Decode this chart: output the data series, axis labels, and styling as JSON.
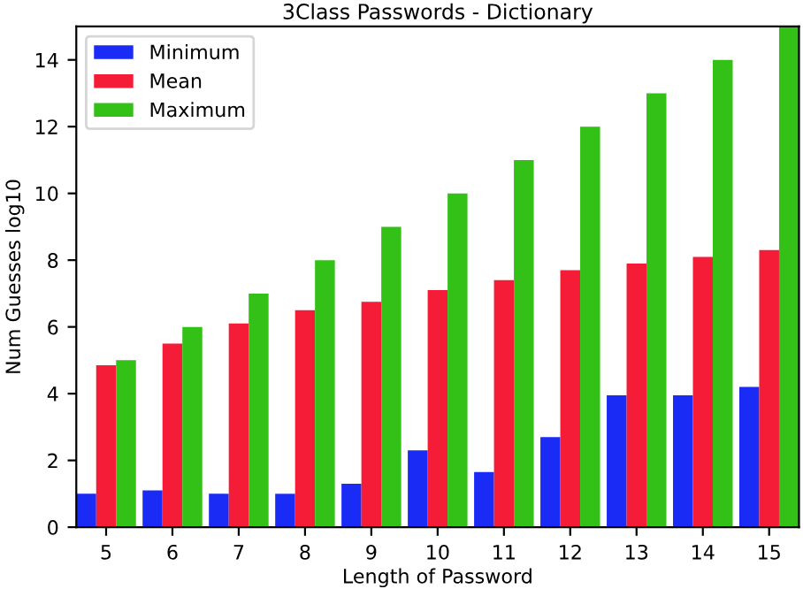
{
  "chart_data": {
    "type": "bar",
    "title": "3Class Passwords - Dictionary",
    "xlabel": "Length of Password",
    "ylabel": "Num Guesses log10",
    "categories": [
      "5",
      "6",
      "7",
      "8",
      "9",
      "10",
      "11",
      "12",
      "13",
      "14",
      "15"
    ],
    "series": [
      {
        "name": "Minimum",
        "color": "#1a2bf5",
        "values": [
          1.0,
          1.1,
          1.0,
          1.0,
          1.3,
          2.3,
          1.65,
          2.7,
          3.95,
          3.95,
          4.2
        ]
      },
      {
        "name": "Mean",
        "color": "#f51c38",
        "values": [
          4.85,
          5.5,
          6.1,
          6.5,
          6.75,
          7.1,
          7.4,
          7.7,
          7.9,
          8.1,
          8.3
        ]
      },
      {
        "name": "Maximum",
        "color": "#33c118",
        "values": [
          5,
          6,
          7,
          8,
          9,
          10,
          11,
          12,
          13,
          14,
          15
        ]
      }
    ],
    "ylim": [
      0,
      15
    ],
    "yticks": [
      0,
      2,
      4,
      6,
      8,
      10,
      12,
      14
    ],
    "grid": false,
    "legend": "top left"
  }
}
